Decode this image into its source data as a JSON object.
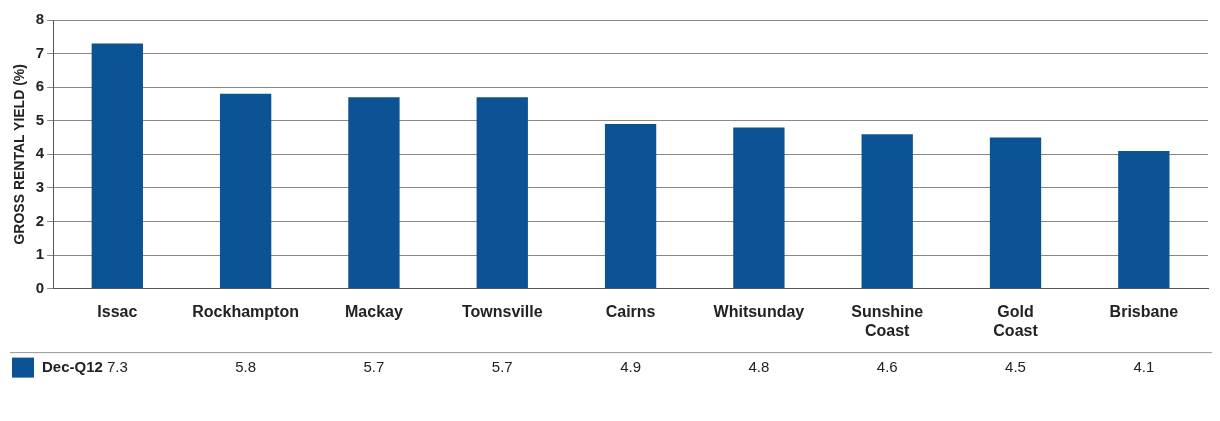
{
  "chart_data": {
    "type": "bar",
    "ylabel": "GROSS RENTAL YIELD (%)",
    "categories": [
      "Issac",
      "Rockhampton",
      "Mackay",
      "Townsville",
      "Cairns",
      "Whitsunday",
      "Sunshine Coast",
      "Gold Coast",
      "Brisbane"
    ],
    "series": [
      {
        "name": "Dec-Q12",
        "color": "#0b5394",
        "values": [
          7.3,
          5.8,
          5.7,
          5.7,
          4.9,
          4.8,
          4.6,
          4.5,
          4.1
        ]
      }
    ],
    "ylim": [
      0,
      8
    ],
    "yticks": [
      0,
      1,
      2,
      3,
      4,
      5,
      6,
      7,
      8
    ],
    "grid": "y",
    "legend": "bottom left",
    "data_labels": true
  }
}
